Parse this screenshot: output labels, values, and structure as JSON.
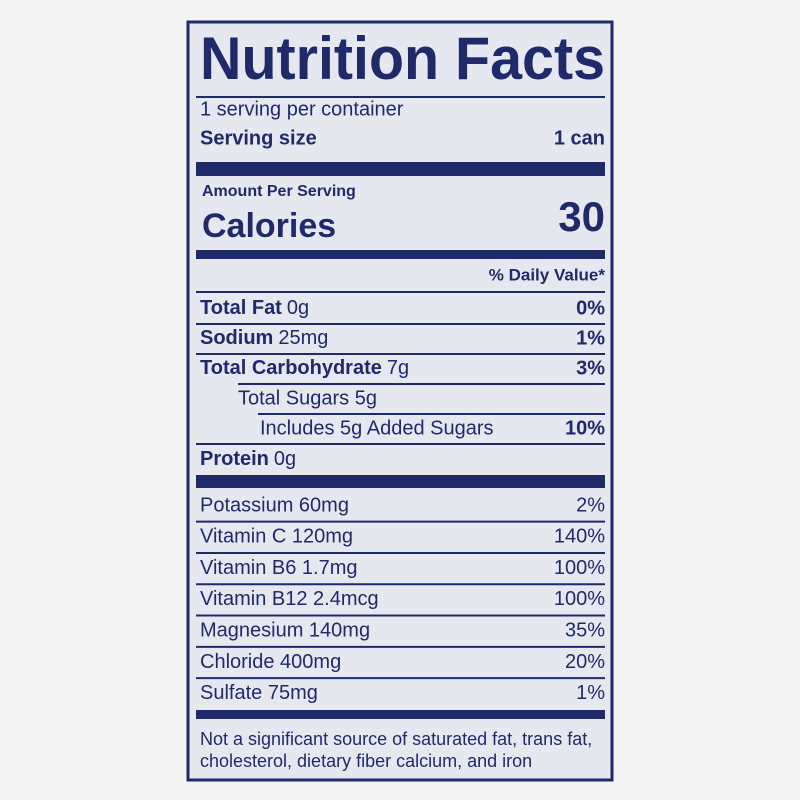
{
  "header": {
    "title": "Nutrition Facts",
    "servings": "1 serving per container",
    "serving_size_label": "Serving size",
    "serving_size": "1 can"
  },
  "calories": {
    "heading": "Amount Per Serving",
    "label": "Calories",
    "value": "30"
  },
  "daily_value_heading": "% Daily Value*",
  "nutrients": [
    {
      "label": "Total Fat",
      "amount": "0g",
      "dv": "0%"
    },
    {
      "label": "Sodium",
      "amount": "25mg",
      "dv": "1%"
    },
    {
      "label": "Total Carbohydrate",
      "amount": "7g",
      "dv": "3%"
    },
    {
      "label": "Total Sugars 5g"
    },
    {
      "label": "Includes 5g Added Sugars",
      "dv": "10%"
    },
    {
      "label": "Protein",
      "amount": "0g"
    }
  ],
  "vitamins": [
    {
      "label": "Potassium 60mg",
      "dv": "2%"
    },
    {
      "label": "Vitamin C 120mg",
      "dv": "140%"
    },
    {
      "label": "Vitamin B6 1.7mg",
      "dv": "100%"
    },
    {
      "label": "Vitamin B12 2.4mcg",
      "dv": "100%"
    },
    {
      "label": "Magnesium 140mg",
      "dv": "35%"
    },
    {
      "label": "Chloride 400mg",
      "dv": "20%"
    },
    {
      "label": "Sulfate 75mg",
      "dv": "1%"
    }
  ],
  "footnote": [
    "Not a significant source of saturated fat, trans fat,",
    "cholesterol, dietary fiber calcium, and iron"
  ]
}
